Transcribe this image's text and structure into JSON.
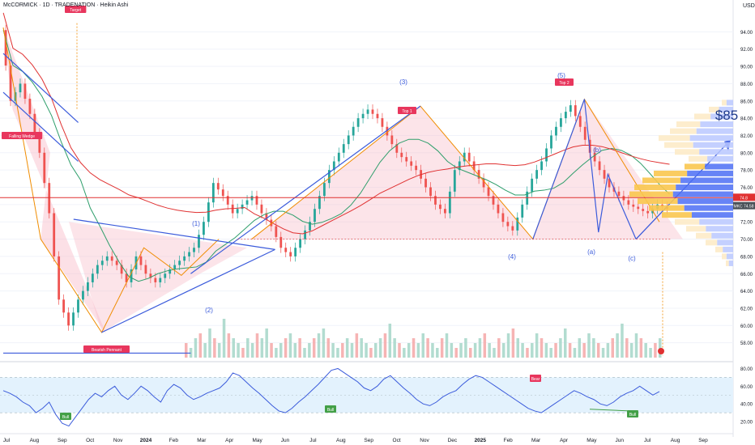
{
  "header": {
    "title": "McCORMICK · 1D · TRADENATION · Heikin Ashi",
    "currency": "USD"
  },
  "colors": {
    "up": "#26a69a",
    "down": "#ef5350",
    "wave": "#3b5bdb",
    "pattern_line": "#f08c00",
    "ma_green": "#2e9e6b",
    "ma_red": "#e03131",
    "rsi_line": "#3b5bdb",
    "rsi_band": "#e3f2fd",
    "label_red": "#e8365d",
    "label_green": "#43a047",
    "price_tag": "#495057",
    "target_text": "#1e3a8a"
  },
  "chart_data": [
    {
      "type": "candlestick",
      "title": "McCORMICK · 1D · TRADENATION · Heikin Ashi",
      "ylim": [
        56,
        96
      ],
      "y_ticks": [
        "94.00",
        "92.00",
        "90.00",
        "88.00",
        "86.00",
        "84.00",
        "82.00",
        "80.00",
        "78.00",
        "76.00",
        "74.00",
        "72.00",
        "70.00",
        "68.00",
        "66.00",
        "64.00",
        "62.00",
        "60.00",
        "58.00"
      ],
      "x_ticks": [
        "Jul",
        "Aug",
        "Sep",
        "Oct",
        "Nov",
        "2024",
        "Feb",
        "Mar",
        "Apr",
        "May",
        "Jun",
        "Jul",
        "Aug",
        "Sep",
        "Oct",
        "Nov",
        "Dec",
        "2025",
        "Feb",
        "Mar",
        "Apr",
        "May",
        "Jun",
        "Jul",
        "Aug",
        "Sep"
      ],
      "price_path_approx": [
        [
          0,
          94.2
        ],
        [
          2,
          86
        ],
        [
          4,
          88
        ],
        [
          6,
          84.5
        ],
        [
          8,
          80
        ],
        [
          10,
          73
        ],
        [
          12,
          63
        ],
        [
          14,
          60
        ],
        [
          16,
          63
        ],
        [
          18,
          65
        ],
        [
          20,
          67
        ],
        [
          22,
          68
        ],
        [
          24,
          67
        ],
        [
          26,
          65
        ],
        [
          28,
          68
        ],
        [
          30,
          66
        ],
        [
          32,
          65
        ],
        [
          34,
          66
        ],
        [
          36,
          67
        ],
        [
          38,
          68
        ],
        [
          40,
          69
        ],
        [
          42,
          72
        ],
        [
          44,
          76.5
        ],
        [
          46,
          75
        ],
        [
          48,
          73
        ],
        [
          50,
          74
        ],
        [
          52,
          75
        ],
        [
          54,
          73
        ],
        [
          56,
          71.5
        ],
        [
          58,
          69
        ],
        [
          60,
          68
        ],
        [
          62,
          70
        ],
        [
          64,
          72
        ],
        [
          66,
          75
        ],
        [
          68,
          78
        ],
        [
          70,
          80
        ],
        [
          72,
          82
        ],
        [
          74,
          84
        ],
        [
          76,
          85
        ],
        [
          78,
          84
        ],
        [
          80,
          82
        ],
        [
          82,
          80
        ],
        [
          84,
          79
        ],
        [
          86,
          78
        ],
        [
          88,
          76
        ],
        [
          90,
          74
        ],
        [
          92,
          73
        ],
        [
          94,
          78
        ],
        [
          96,
          80
        ],
        [
          98,
          78
        ],
        [
          100,
          76
        ],
        [
          102,
          74
        ],
        [
          104,
          72
        ],
        [
          106,
          71
        ],
        [
          108,
          74
        ],
        [
          110,
          77
        ],
        [
          112,
          79
        ],
        [
          114,
          82
        ],
        [
          116,
          84
        ],
        [
          118,
          85.5
        ],
        [
          120,
          83
        ],
        [
          122,
          80
        ],
        [
          124,
          78
        ],
        [
          126,
          76
        ],
        [
          128,
          75
        ],
        [
          130,
          74
        ],
        [
          132,
          73.5
        ],
        [
          134,
          73
        ],
        [
          136,
          74
        ],
        [
          138,
          73.5
        ]
      ],
      "last_price": "74.58",
      "price_tags": [
        {
          "label": "74.8",
          "value": 74.8
        },
        {
          "label": "MKC 74.58",
          "value": 74.58
        }
      ],
      "annotations": [
        {
          "text": "Target",
          "kind": "label"
        },
        {
          "text": "Falling Wedge",
          "kind": "label"
        },
        {
          "text": "Bearish Pennant",
          "kind": "label"
        },
        {
          "text": "Top 1",
          "kind": "label"
        },
        {
          "text": "Top 2",
          "kind": "label"
        },
        {
          "text": "(1)",
          "kind": "wave"
        },
        {
          "text": "(2)",
          "kind": "wave"
        },
        {
          "text": "(3)",
          "kind": "wave"
        },
        {
          "text": "(4)",
          "kind": "wave"
        },
        {
          "text": "(5)",
          "kind": "wave"
        },
        {
          "text": "(a)",
          "kind": "wave"
        },
        {
          "text": "(b)",
          "kind": "wave"
        },
        {
          "text": "(c)",
          "kind": "wave"
        },
        {
          "text": "$85",
          "kind": "target"
        }
      ],
      "volume_bars": [
        3,
        2,
        4,
        5,
        3,
        6,
        4,
        3,
        8,
        5,
        4,
        3,
        2,
        4,
        3,
        5,
        4,
        6,
        3,
        2,
        3,
        4,
        5,
        3,
        4,
        2,
        3,
        4,
        5,
        6,
        4,
        3,
        2,
        3,
        4,
        3,
        5,
        4,
        3,
        2,
        3,
        4,
        5,
        7,
        4,
        3,
        2,
        3,
        4,
        3,
        5,
        4,
        3,
        2,
        4,
        5,
        3,
        2,
        3,
        4,
        2,
        3,
        4,
        5,
        3,
        2,
        4,
        3,
        5,
        6,
        4,
        3,
        2,
        3,
        5,
        4,
        3,
        2,
        3,
        4,
        6,
        3,
        2,
        4,
        3,
        5,
        4,
        3,
        2,
        3,
        4,
        5,
        7,
        4,
        3,
        5,
        4,
        3,
        2,
        3,
        4
      ]
    },
    {
      "type": "line",
      "title": "RSI",
      "ylim": [
        10,
        85
      ],
      "y_ticks": [
        "80.00",
        "60.00",
        "40.00",
        "20.00"
      ],
      "band": [
        30,
        70
      ],
      "midline": 50,
      "values": [
        55,
        52,
        48,
        42,
        38,
        30,
        35,
        42,
        28,
        18,
        15,
        25,
        35,
        45,
        52,
        48,
        55,
        60,
        50,
        45,
        52,
        60,
        55,
        48,
        42,
        55,
        62,
        58,
        50,
        45,
        48,
        52,
        55,
        58,
        65,
        75,
        72,
        65,
        58,
        52,
        45,
        38,
        32,
        30,
        35,
        42,
        48,
        55,
        62,
        70,
        78,
        80,
        75,
        70,
        65,
        58,
        55,
        60,
        68,
        72,
        65,
        58,
        52,
        45,
        40,
        38,
        42,
        48,
        52,
        55,
        62,
        68,
        72,
        70,
        65,
        60,
        55,
        50,
        45,
        40,
        35,
        32,
        30,
        35,
        40,
        45,
        50,
        55,
        52,
        48,
        45,
        40,
        38,
        42,
        48,
        52,
        55,
        60,
        55,
        50,
        54
      ],
      "annotations": [
        {
          "text": "Bear",
          "kind": "label"
        },
        {
          "text": "Bull",
          "kind": "label"
        },
        {
          "text": "Bull",
          "kind": "label"
        },
        {
          "text": "Bull",
          "kind": "label"
        }
      ]
    }
  ]
}
